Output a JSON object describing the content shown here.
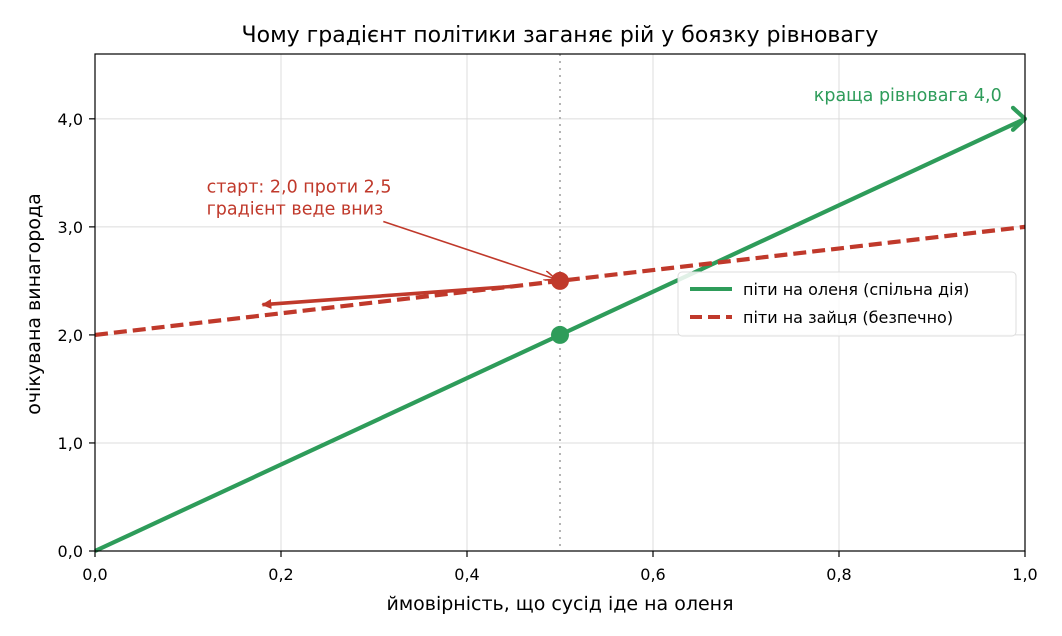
{
  "chart_data": {
    "type": "line",
    "title": "Чому градієнт політики заганяє рій у боязку рівновагу",
    "xlabel": "ймовірність, що сусід іде на оленя",
    "ylabel": "очікувана винагорода",
    "xlim": [
      0,
      1
    ],
    "ylim": [
      0,
      4.6
    ],
    "xticks": [
      0,
      0.2,
      0.4,
      0.6,
      0.8,
      1.0
    ],
    "xtick_labels": [
      "0,0",
      "0,2",
      "0,4",
      "0,6",
      "0,8",
      "1,0"
    ],
    "yticks": [
      0,
      1,
      2,
      3,
      4
    ],
    "ytick_labels": [
      "0,0",
      "1,0",
      "2,0",
      "3,0",
      "4,0"
    ],
    "grid": true,
    "legend_position": "center-right",
    "series": [
      {
        "name": "піти на оленя (спільна дія)",
        "x": [
          0,
          1
        ],
        "y": [
          0,
          4
        ],
        "color": "#2e9c5a",
        "style": "solid"
      },
      {
        "name": "піти на зайця (безпечно)",
        "x": [
          0,
          1
        ],
        "y": [
          2,
          3
        ],
        "color": "#c0392b",
        "style": "dashed"
      }
    ],
    "vline": {
      "x": 0.5,
      "style": "dotted",
      "color": "#b5b5b5"
    },
    "points": [
      {
        "x": 0.5,
        "y": 2.0,
        "color": "#2e9c5a"
      },
      {
        "x": 0.5,
        "y": 2.5,
        "color": "#c0392b"
      }
    ],
    "gradient_arrow": {
      "from": [
        0.45,
        2.45
      ],
      "to": [
        0.18,
        2.28
      ],
      "color": "#c0392b"
    },
    "annotations": {
      "start": {
        "lines": [
          "старт: 2,0 проти 2,5",
          "градієнт веде вниз"
        ],
        "text_at": [
          0.12,
          3.32
        ],
        "arrow_to": [
          0.5,
          2.5
        ],
        "color": "#c0392b"
      },
      "better": {
        "text": "краща рівновага 4,0",
        "text_at": [
          0.975,
          4.22
        ],
        "color": "#2e9c5a",
        "marker_at": [
          1.0,
          4.0
        ]
      }
    }
  }
}
